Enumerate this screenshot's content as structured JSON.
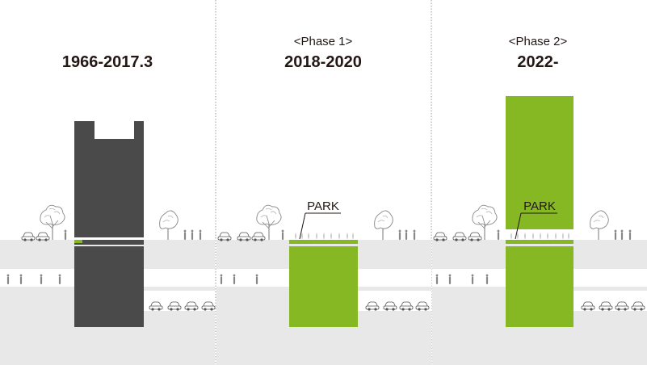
{
  "colors": {
    "building_dark": "#4a4a4a",
    "park_green": "#86b824",
    "ground_gray": "#e8e8e8",
    "divider": "#999999",
    "text": "#231815"
  },
  "panels": [
    {
      "phase": "",
      "period": "1966-2017.3",
      "park_label": "",
      "structure": "dark-building"
    },
    {
      "phase": "<Phase 1>",
      "period": "2018-2020",
      "park_label": "PARK",
      "structure": "green-park"
    },
    {
      "phase": "<Phase 2>",
      "period": "2022-",
      "park_label": "PARK",
      "structure": "green-tower"
    }
  ]
}
